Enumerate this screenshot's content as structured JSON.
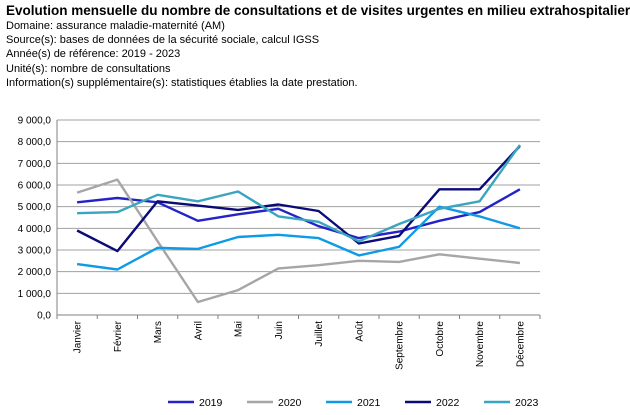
{
  "header": {
    "title": "Evolution mensuelle du nombre de consultations et de visites urgentes en milieu extrahospitalier",
    "lines": [
      "Domaine: assurance maladie-maternité (AM)",
      "Source(s): bases de données de la sécurité sociale, calcul IGSS",
      "Année(s) de référence: 2019 - 2023",
      "Unité(s): nombre de consultations",
      "Information(s) supplémentaire(s): statistiques établies la date prestation."
    ]
  },
  "chart_data": {
    "type": "line",
    "title": "",
    "xlabel": "",
    "ylabel": "",
    "ylim": [
      0,
      9000
    ],
    "yticks": [
      "0,0",
      "1 000,0",
      "2 000,0",
      "3 000,0",
      "4 000,0",
      "5 000,0",
      "6 000,0",
      "7 000,0",
      "8 000,0",
      "9 000,0"
    ],
    "grid": true,
    "legend_position": "bottom",
    "categories": [
      "Janvier",
      "Février",
      "Mars",
      "Avril",
      "Mai",
      "Juin",
      "Juillet",
      "Août",
      "Septembre",
      "Octobre",
      "Novembre",
      "Décembre"
    ],
    "series": [
      {
        "name": "2019",
        "color": "#2323c8",
        "values": [
          5200,
          5400,
          5200,
          4350,
          4650,
          4900,
          4100,
          3550,
          3850,
          4350,
          4750,
          5800
        ]
      },
      {
        "name": "2020",
        "color": "#a6a6a6",
        "values": [
          5650,
          6250,
          3400,
          600,
          1150,
          2150,
          2300,
          2500,
          2450,
          2800,
          2600,
          2400
        ]
      },
      {
        "name": "2021",
        "color": "#0f9ae6",
        "values": [
          2350,
          2100,
          3100,
          3050,
          3600,
          3700,
          3550,
          2750,
          3150,
          5000,
          4550,
          4000
        ]
      },
      {
        "name": "2022",
        "color": "#0a0a78",
        "values": [
          3900,
          2950,
          5250,
          5050,
          4850,
          5100,
          4800,
          3300,
          3650,
          5800,
          5800,
          7800
        ]
      },
      {
        "name": "2023",
        "color": "#3aa5bf",
        "values": [
          4700,
          4750,
          5550,
          5250,
          5700,
          4550,
          4300,
          3400,
          4200,
          4900,
          5250,
          7850
        ]
      }
    ]
  }
}
